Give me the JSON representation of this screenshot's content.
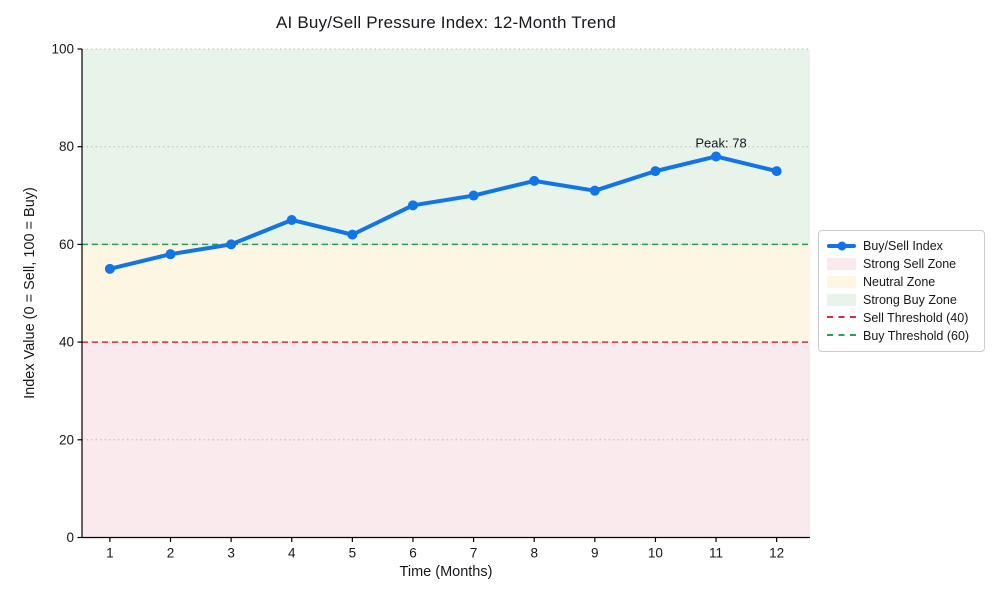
{
  "chart_data": {
    "type": "line",
    "title": "AI Buy/Sell Pressure Index: 12-Month Trend",
    "xlabel": "Time (Months)",
    "ylabel": "Index Value (0 = Sell, 100 = Buy)",
    "x": [
      1,
      2,
      3,
      4,
      5,
      6,
      7,
      8,
      9,
      10,
      11,
      12
    ],
    "series": [
      {
        "name": "Buy/Sell Index",
        "values": [
          55,
          58,
          60,
          65,
          62,
          68,
          70,
          73,
          71,
          75,
          78,
          75
        ],
        "color": "#1174e8",
        "marker": "circle",
        "line_width": 4,
        "marker_radius": 5
      }
    ],
    "xlim": [
      0.54,
      12.55
    ],
    "ylim": [
      0,
      100
    ],
    "xticks": [
      1,
      2,
      3,
      4,
      5,
      6,
      7,
      8,
      9,
      10,
      11,
      12
    ],
    "yticks": [
      0,
      20,
      40,
      60,
      80,
      100
    ],
    "grid": {
      "axis": "y",
      "style": "dotted",
      "color": "#b8b8b8"
    },
    "zones": [
      {
        "label": "Strong Sell Zone",
        "from": 0,
        "to": 40,
        "color": "#fae9ed"
      },
      {
        "label": "Neutral Zone",
        "from": 40,
        "to": 60,
        "color": "#fdf6e2"
      },
      {
        "label": "Strong Buy Zone",
        "from": 60,
        "to": 100,
        "color": "#e8f3ea"
      }
    ],
    "thresholds": [
      {
        "label": "Sell Threshold (40)",
        "value": 40,
        "color": "#cd3241",
        "style": "dashed"
      },
      {
        "label": "Buy Threshold (60)",
        "value": 60,
        "color": "#2f9e57",
        "style": "dashed"
      }
    ],
    "annotations": [
      {
        "text": "Peak: 78",
        "x": 11,
        "y": 78,
        "color": "#1174e8"
      }
    ],
    "legend_position": "outside-center-right",
    "axis_color": "#000000"
  },
  "legend": {
    "items": [
      {
        "label": "Buy/Sell Index",
        "swatch": "line",
        "color": "#1174e8"
      },
      {
        "label": "Strong Sell Zone",
        "swatch": "patch",
        "color": "#fae9ed"
      },
      {
        "label": "Neutral Zone",
        "swatch": "patch",
        "color": "#fdf6e2"
      },
      {
        "label": "Strong Buy Zone",
        "swatch": "patch",
        "color": "#e8f3ea"
      },
      {
        "label": "Sell Threshold (40)",
        "swatch": "dashed",
        "color": "#cd3241"
      },
      {
        "label": "Buy Threshold (60)",
        "swatch": "dashed",
        "color": "#2f9e57"
      }
    ]
  }
}
